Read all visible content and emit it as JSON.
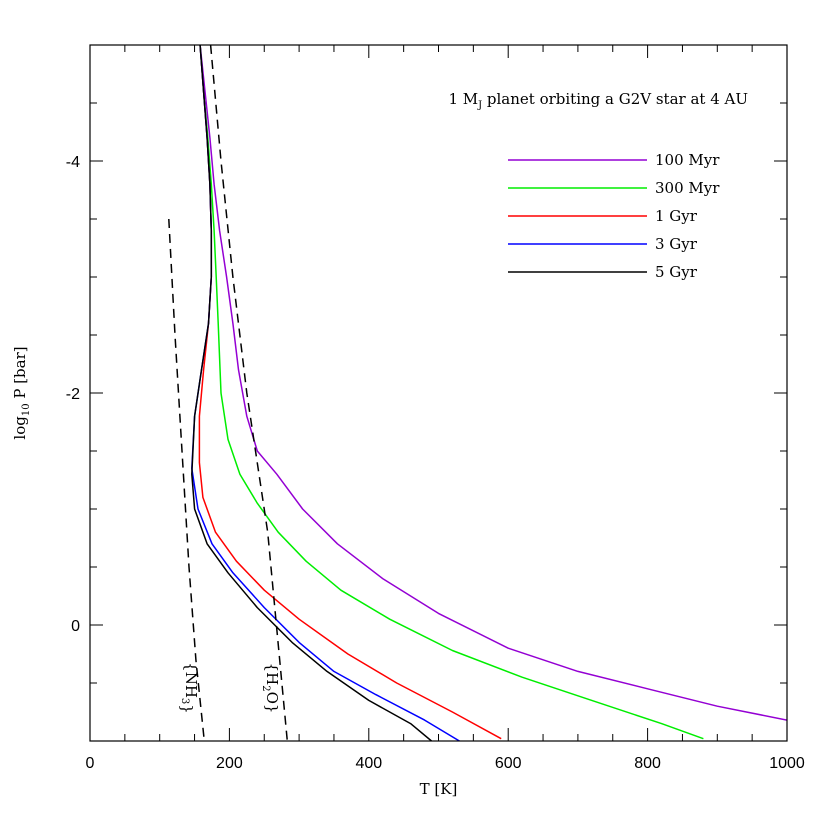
{
  "chart_data": {
    "type": "line",
    "title": "",
    "annotation": {
      "prefix": "1 M",
      "sub": "J",
      "suffix": " planet orbiting a G2V star at 4 AU"
    },
    "xlabel": "T [K]",
    "ylabel": {
      "prefix": "log",
      "sub": "10",
      "suffix": " P [bar]"
    },
    "xlim": [
      0,
      1000
    ],
    "ylim": [
      1,
      -5
    ],
    "x_ticks": [
      0,
      200,
      400,
      600,
      800,
      1000
    ],
    "x_tick_labels": [
      "0",
      "200",
      "400",
      "600",
      "800",
      "1000"
    ],
    "y_ticks": [
      0,
      -2,
      -4
    ],
    "y_tick_labels": [
      "0",
      "-2",
      "-4"
    ],
    "x_minor_step": 50,
    "y_minor_step": 0.5,
    "grid": false,
    "legend_position": "top-right",
    "series": [
      {
        "name": "100 Myr",
        "color": "#9400D3",
        "x": [
          158,
          165,
          172,
          178,
          186,
          196,
          205,
          213,
          225,
          240,
          268,
          305,
          355,
          420,
          500,
          600,
          700,
          800,
          900,
          1000
        ],
        "y": [
          -5.0,
          -4.6,
          -4.2,
          -3.8,
          -3.4,
          -3.0,
          -2.6,
          -2.2,
          -1.8,
          -1.5,
          -1.3,
          -1.0,
          -0.7,
          -0.4,
          -0.1,
          0.2,
          0.4,
          0.55,
          0.7,
          0.82
        ]
      },
      {
        "name": "300 Myr",
        "color": "#00EE00",
        "x": [
          158,
          163,
          169,
          174,
          178,
          181,
          184,
          188,
          198,
          215,
          240,
          270,
          310,
          360,
          430,
          520,
          620,
          720,
          820,
          880
        ],
        "y": [
          -5.0,
          -4.6,
          -4.2,
          -3.8,
          -3.4,
          -3.0,
          -2.6,
          -2.0,
          -1.6,
          -1.3,
          -1.05,
          -0.8,
          -0.55,
          -0.3,
          -0.05,
          0.22,
          0.45,
          0.65,
          0.85,
          0.98
        ]
      },
      {
        "name": "1 Gyr",
        "color": "#FF0000",
        "x": [
          158,
          163,
          168,
          172,
          174,
          174,
          170,
          163,
          157,
          157,
          162,
          180,
          210,
          250,
          300,
          370,
          440,
          520,
          590
        ],
        "y": [
          -5.0,
          -4.6,
          -4.2,
          -3.8,
          -3.4,
          -3.0,
          -2.6,
          -2.2,
          -1.8,
          -1.4,
          -1.1,
          -0.8,
          -0.55,
          -0.3,
          -0.05,
          0.25,
          0.5,
          0.75,
          0.98
        ]
      },
      {
        "name": "3 Gyr",
        "color": "#0000FF",
        "x": [
          158,
          163,
          168,
          172,
          174,
          174,
          170,
          160,
          150,
          146,
          155,
          175,
          205,
          250,
          300,
          350,
          410,
          480,
          530
        ],
        "y": [
          -5.0,
          -4.6,
          -4.2,
          -3.8,
          -3.4,
          -3.0,
          -2.6,
          -2.2,
          -1.8,
          -1.35,
          -1.0,
          -0.7,
          -0.45,
          -0.15,
          0.15,
          0.4,
          0.6,
          0.82,
          1.0
        ]
      },
      {
        "name": "5 Gyr",
        "color": "#000000",
        "x": [
          158,
          163,
          168,
          172,
          174,
          174,
          170,
          160,
          150,
          146,
          150,
          168,
          198,
          240,
          290,
          340,
          400,
          460,
          490
        ],
        "y": [
          -5.0,
          -4.6,
          -4.2,
          -3.8,
          -3.4,
          -3.0,
          -2.6,
          -2.2,
          -1.8,
          -1.3,
          -1.0,
          -0.7,
          -0.45,
          -0.15,
          0.15,
          0.4,
          0.65,
          0.85,
          1.0
        ]
      }
    ],
    "condensation_curves": [
      {
        "label": "{NH",
        "sub": "3",
        "label_end": "}",
        "x": [
          113,
          122,
          132,
          142,
          152,
          164
        ],
        "y": [
          -3.5,
          -2.5,
          -1.5,
          -0.5,
          0.3,
          1.0
        ]
      },
      {
        "label": "{H",
        "sub": "2",
        "label_mid": "O",
        "label_end": "}",
        "x": [
          173,
          188,
          205,
          225,
          255,
          283
        ],
        "y": [
          -5.0,
          -4.0,
          -3.0,
          -2.0,
          -0.8,
          1.0
        ]
      }
    ]
  }
}
